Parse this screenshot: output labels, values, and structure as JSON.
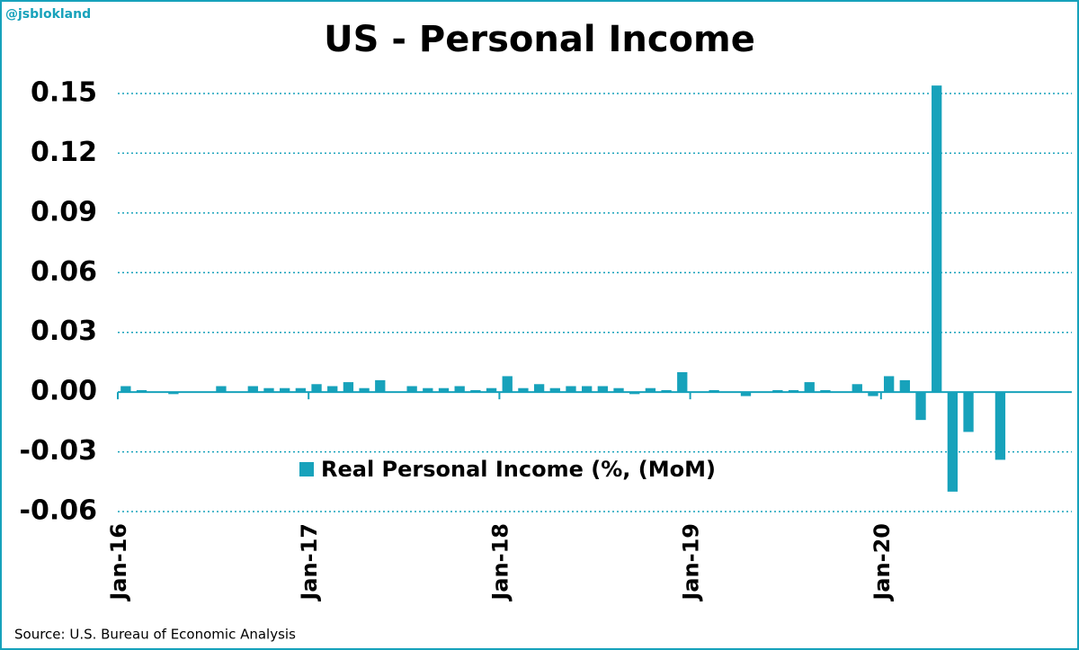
{
  "chart_data": {
    "type": "bar",
    "watermark": "@jsblokland",
    "title": "US - Personal Income",
    "source": "Source: U.S. Bureau of Economic Analysis",
    "categories": [
      "Jan-16",
      null,
      null,
      null,
      null,
      null,
      null,
      null,
      null,
      null,
      null,
      null,
      "Jan-17",
      null,
      null,
      null,
      null,
      null,
      null,
      null,
      null,
      null,
      null,
      null,
      "Jan-18",
      null,
      null,
      null,
      null,
      null,
      null,
      null,
      null,
      null,
      null,
      null,
      "Jan-19",
      null,
      null,
      null,
      null,
      null,
      null,
      null,
      null,
      null,
      null,
      null,
      "Jan-20",
      null,
      null,
      null,
      null,
      null,
      null,
      null,
      null,
      null,
      null,
      null
    ],
    "series": [
      {
        "name": "Real Personal Income (%, (MoM)",
        "color": "#17a2bb",
        "values": [
          0.003,
          0.001,
          0,
          -0.001,
          0,
          0,
          0.003,
          0,
          0.003,
          0.002,
          0.002,
          0.002,
          0.004,
          0.003,
          0.005,
          0.002,
          0.006,
          0,
          0.003,
          0.002,
          0.002,
          0.003,
          0.001,
          0.002,
          0.008,
          0.002,
          0.004,
          0.002,
          0.003,
          0.003,
          0.003,
          0.002,
          -0.001,
          0.002,
          0.001,
          0.01,
          0,
          0.001,
          0,
          -0.002,
          0,
          0.001,
          0.001,
          0.005,
          0.001,
          0,
          0.004,
          -0.002,
          0.008,
          0.006,
          -0.014,
          0.154,
          -0.05,
          -0.02,
          0,
          -0.034,
          null,
          null,
          null,
          null
        ]
      }
    ],
    "ylim": [
      -0.06,
      0.15
    ],
    "yticks": [
      {
        "value": 0.15,
        "label": "0.15"
      },
      {
        "value": 0.12,
        "label": "0.12"
      },
      {
        "value": 0.09,
        "label": "0.09"
      },
      {
        "value": 0.06,
        "label": "0.06"
      },
      {
        "value": 0.03,
        "label": "0.03"
      },
      {
        "value": 0,
        "label": "0.00"
      },
      {
        "value": -0.03,
        "label": "-0.03"
      },
      {
        "value": -0.06,
        "label": "-0.06"
      }
    ],
    "grid": true
  }
}
